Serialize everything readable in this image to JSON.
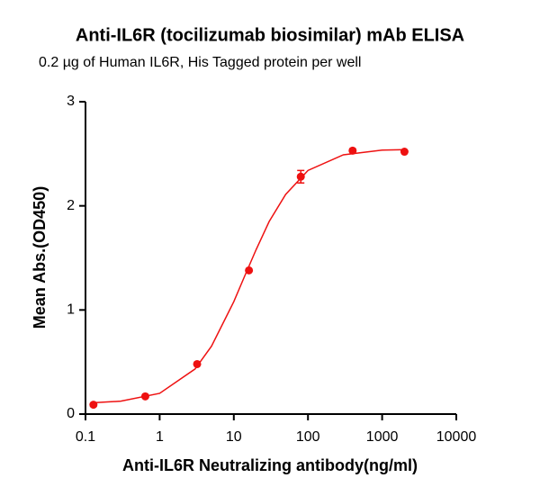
{
  "chart_data": {
    "type": "scatter",
    "title": "Anti-IL6R (tocilizumab biosimilar) mAb ELISA",
    "subtitle": "0.2 µg of Human IL6R, His Tagged protein per well",
    "x_label": "Anti-IL6R Neutralizing antibody(ng/ml)",
    "y_label": "Mean Abs.(OD450)",
    "x_log": true,
    "xlim": [
      0.1,
      10000
    ],
    "xticks": [
      0.1,
      1,
      10,
      100,
      1000,
      10000
    ],
    "ylim": [
      0,
      3
    ],
    "yticks": [
      0,
      1,
      2,
      3
    ],
    "points": {
      "color": "#ee1111",
      "x": [
        0.128,
        0.64,
        3.2,
        16,
        80,
        400,
        2000
      ],
      "values": [
        0.09,
        0.17,
        0.48,
        1.38,
        2.28,
        2.53,
        2.52
      ],
      "errors": [
        null,
        null,
        null,
        null,
        0.06,
        null,
        null
      ]
    },
    "curve": {
      "color": "#ee1111",
      "x": [
        0.128,
        0.3,
        1,
        3,
        5,
        10,
        14,
        20,
        30,
        50,
        100,
        300,
        1000,
        2000
      ],
      "values": [
        0.109,
        0.124,
        0.199,
        0.433,
        0.652,
        1.08,
        1.325,
        1.58,
        1.85,
        2.11,
        2.34,
        2.49,
        2.535,
        2.54
      ]
    }
  }
}
